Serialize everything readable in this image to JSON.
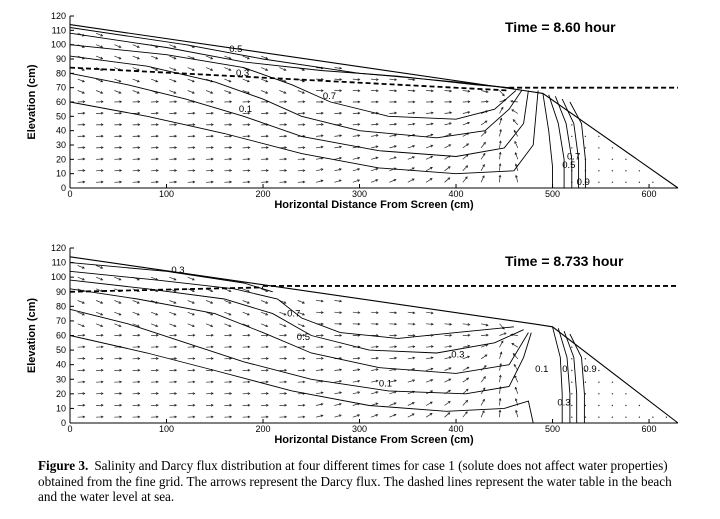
{
  "caption": {
    "label": "Figure 3.",
    "text": "Salinity and Darcy flux distribution at four different times for case 1 (solute does not affect water properties) obtained from the fine grid. The arrows represent the Darcy flux. The dashed lines represent the water table in the beach and the water level at sea."
  },
  "chart_data": [
    {
      "type": "contour",
      "title": "Time = 8.60 hour",
      "xlabel": "Horizontal Distance From Screen (cm)",
      "ylabel": "Elevation (cm)",
      "xlim": [
        0,
        630
      ],
      "ylim": [
        0,
        120
      ],
      "xticks": [
        0,
        100,
        200,
        300,
        400,
        500,
        600
      ],
      "yticks": [
        0,
        10,
        20,
        30,
        40,
        50,
        60,
        70,
        80,
        90,
        100,
        110,
        120
      ],
      "beach_surface": [
        [
          0,
          114
        ],
        [
          470,
          68
        ],
        [
          490,
          66
        ],
        [
          630,
          0
        ]
      ],
      "water_table": [
        [
          0,
          84
        ],
        [
          455,
          68
        ]
      ],
      "sea_level": 70,
      "contour_labels": [
        {
          "text": "0.5",
          "x": 165,
          "y": 95
        },
        {
          "text": "0.3",
          "x": 172,
          "y": 78
        },
        {
          "text": "0.7",
          "x": 262,
          "y": 62
        },
        {
          "text": "0.1",
          "x": 175,
          "y": 53
        },
        {
          "text": "0.7",
          "x": 515,
          "y": 20
        },
        {
          "text": "0.5",
          "x": 510,
          "y": 14
        },
        {
          "text": "0.9",
          "x": 525,
          "y": 2
        }
      ],
      "contours": [
        [
          [
            0,
            112
          ],
          [
            120,
            100
          ],
          [
            200,
            90
          ],
          [
            300,
            80
          ],
          [
            400,
            74
          ],
          [
            455,
            70
          ]
        ],
        [
          [
            0,
            108
          ],
          [
            100,
            98
          ],
          [
            180,
            88
          ],
          [
            260,
            82
          ],
          [
            340,
            78
          ],
          [
            420,
            72
          ],
          [
            455,
            70
          ]
        ],
        [
          [
            0,
            100
          ],
          [
            100,
            93
          ],
          [
            180,
            84
          ],
          [
            230,
            72
          ],
          [
            270,
            60
          ],
          [
            330,
            50
          ],
          [
            400,
            48
          ],
          [
            440,
            55
          ],
          [
            462,
            68
          ]
        ],
        [
          [
            0,
            92
          ],
          [
            80,
            85
          ],
          [
            150,
            74
          ],
          [
            200,
            62
          ],
          [
            240,
            50
          ],
          [
            300,
            40
          ],
          [
            380,
            35
          ],
          [
            430,
            40
          ],
          [
            455,
            55
          ],
          [
            468,
            68
          ]
        ],
        [
          [
            0,
            80
          ],
          [
            60,
            72
          ],
          [
            120,
            62
          ],
          [
            180,
            50
          ],
          [
            240,
            36
          ],
          [
            320,
            26
          ],
          [
            400,
            22
          ],
          [
            450,
            28
          ],
          [
            470,
            45
          ],
          [
            475,
            68
          ]
        ],
        [
          [
            0,
            60
          ],
          [
            80,
            50
          ],
          [
            160,
            38
          ],
          [
            240,
            24
          ],
          [
            320,
            14
          ],
          [
            400,
            10
          ],
          [
            460,
            12
          ],
          [
            480,
            30
          ],
          [
            485,
            68
          ]
        ],
        [
          [
            490,
            66
          ],
          [
            496,
            40
          ],
          [
            500,
            15
          ],
          [
            500,
            0
          ]
        ],
        [
          [
            496,
            65
          ],
          [
            506,
            45
          ],
          [
            512,
            20
          ],
          [
            512,
            0
          ]
        ],
        [
          [
            503,
            64
          ],
          [
            514,
            45
          ],
          [
            520,
            20
          ],
          [
            520,
            0
          ]
        ],
        [
          [
            510,
            62
          ],
          [
            522,
            45
          ],
          [
            527,
            20
          ],
          [
            527,
            0
          ]
        ],
        [
          [
            518,
            60
          ],
          [
            530,
            45
          ],
          [
            534,
            20
          ],
          [
            534,
            0
          ]
        ]
      ]
    },
    {
      "type": "contour",
      "title": "Time = 8.733 hour",
      "xlabel": "Horizontal Distance From Screen (cm)",
      "ylabel": "Elevation (cm)",
      "xlim": [
        0,
        630
      ],
      "ylim": [
        0,
        120
      ],
      "xticks": [
        0,
        100,
        200,
        300,
        400,
        500,
        600
      ],
      "yticks": [
        0,
        10,
        20,
        30,
        40,
        50,
        60,
        70,
        80,
        90,
        100,
        110,
        120
      ],
      "beach_surface": [
        [
          0,
          114
        ],
        [
          480,
          68
        ],
        [
          500,
          66
        ],
        [
          630,
          0
        ]
      ],
      "water_table": [
        [
          0,
          90
        ],
        [
          200,
          93
        ]
      ],
      "sea_level": 94,
      "contour_labels": [
        {
          "text": "0.3",
          "x": 105,
          "y": 103
        },
        {
          "text": "0.7",
          "x": 225,
          "y": 73
        },
        {
          "text": "0.5",
          "x": 235,
          "y": 57
        },
        {
          "text": "0.3",
          "x": 395,
          "y": 45
        },
        {
          "text": "0.1",
          "x": 320,
          "y": 25
        },
        {
          "text": "0.1",
          "x": 482,
          "y": 35
        },
        {
          "text": "0",
          "x": 510,
          "y": 35
        },
        {
          "text": "0.9",
          "x": 532,
          "y": 35
        },
        {
          "text": "0.3",
          "x": 505,
          "y": 12
        }
      ],
      "contours": [
        [
          [
            0,
            110
          ],
          [
            100,
            104
          ],
          [
            180,
            96
          ],
          [
            210,
            90
          ]
        ],
        [
          [
            0,
            104
          ],
          [
            90,
            98
          ],
          [
            170,
            92
          ],
          [
            215,
            85
          ],
          [
            240,
            72
          ],
          [
            280,
            62
          ],
          [
            340,
            58
          ],
          [
            400,
            62
          ],
          [
            460,
            66
          ]
        ],
        [
          [
            0,
            98
          ],
          [
            80,
            92
          ],
          [
            160,
            85
          ],
          [
            210,
            75
          ],
          [
            250,
            60
          ],
          [
            310,
            50
          ],
          [
            380,
            48
          ],
          [
            440,
            55
          ],
          [
            470,
            64
          ]
        ],
        [
          [
            0,
            92
          ],
          [
            70,
            85
          ],
          [
            150,
            75
          ],
          [
            200,
            62
          ],
          [
            250,
            48
          ],
          [
            320,
            38
          ],
          [
            400,
            34
          ],
          [
            455,
            40
          ],
          [
            475,
            62
          ]
        ],
        [
          [
            0,
            78
          ],
          [
            60,
            68
          ],
          [
            120,
            55
          ],
          [
            180,
            42
          ],
          [
            250,
            30
          ],
          [
            330,
            22
          ],
          [
            410,
            20
          ],
          [
            455,
            25
          ],
          [
            470,
            45
          ],
          [
            478,
            62
          ]
        ],
        [
          [
            0,
            60
          ],
          [
            80,
            48
          ],
          [
            150,
            36
          ],
          [
            230,
            22
          ],
          [
            310,
            12
          ],
          [
            390,
            8
          ],
          [
            450,
            10
          ],
          [
            475,
            15
          ],
          [
            480,
            0
          ]
        ],
        [
          [
            500,
            66
          ],
          [
            508,
            45
          ],
          [
            510,
            20
          ],
          [
            510,
            0
          ]
        ],
        [
          [
            506,
            65
          ],
          [
            515,
            45
          ],
          [
            518,
            20
          ],
          [
            518,
            0
          ]
        ],
        [
          [
            512,
            63
          ],
          [
            522,
            45
          ],
          [
            525,
            20
          ],
          [
            525,
            0
          ]
        ],
        [
          [
            518,
            61
          ],
          [
            530,
            45
          ],
          [
            533,
            20
          ],
          [
            533,
            0
          ]
        ]
      ]
    }
  ]
}
